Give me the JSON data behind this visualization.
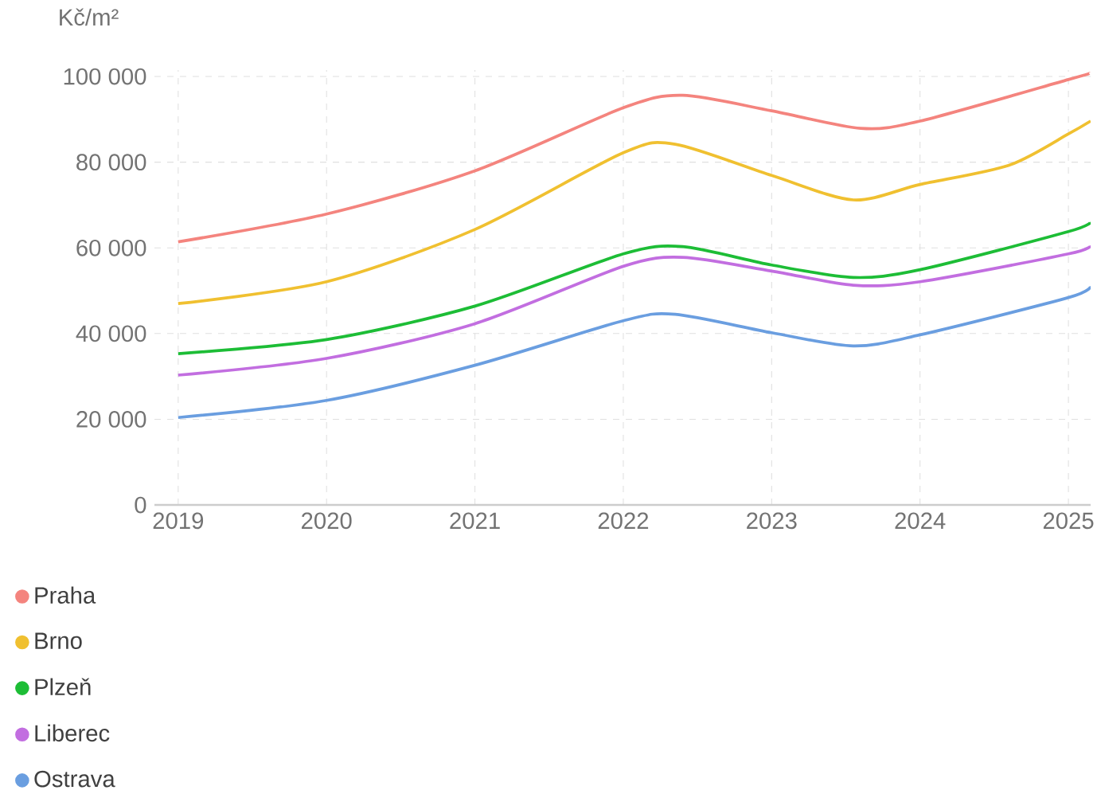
{
  "chart_data": {
    "type": "line",
    "ylabel": "Kč/m²",
    "xlim": [
      2018.84,
      2025.15
    ],
    "xticks": [
      2019,
      2020,
      2021,
      2022,
      2023,
      2024,
      2025
    ],
    "ylim": [
      0,
      101500
    ],
    "yticks": [
      {
        "value": 0,
        "label": "0"
      },
      {
        "value": 20000,
        "label": "20 000"
      },
      {
        "value": 40000,
        "label": "40 000"
      },
      {
        "value": 60000,
        "label": "60 000"
      },
      {
        "value": 80000,
        "label": "80 000"
      },
      {
        "value": 100000,
        "label": "100 000"
      }
    ],
    "grid": true,
    "legend": "bottom",
    "series": [
      {
        "name": "Praha",
        "color": "#f4847e",
        "x": [
          2019,
          2020,
          2021,
          2022,
          2022.4,
          2023,
          2023.6,
          2024,
          2025,
          2025.15
        ],
        "values": [
          61400,
          67900,
          78000,
          92700,
          95600,
          92000,
          87900,
          89600,
          99300,
          100800
        ]
      },
      {
        "name": "Brno",
        "color": "#f0c030",
        "x": [
          2019,
          2020,
          2021,
          2022,
          2022.35,
          2023,
          2023.55,
          2024,
          2024.6,
          2025,
          2025.15
        ],
        "values": [
          47000,
          52100,
          64300,
          82200,
          84200,
          76900,
          71200,
          74800,
          79300,
          86600,
          89600
        ]
      },
      {
        "name": "Plzeň",
        "color": "#1dbd36",
        "x": [
          2019,
          2020,
          2021,
          2022,
          2022.4,
          2023,
          2023.55,
          2024,
          2025,
          2025.15
        ],
        "values": [
          35300,
          38600,
          46400,
          58600,
          60300,
          56000,
          53100,
          54900,
          63800,
          66100
        ]
      },
      {
        "name": "Liberec",
        "color": "#c26ee0",
        "x": [
          2019,
          2020,
          2021,
          2022,
          2022.4,
          2023,
          2023.55,
          2024,
          2025,
          2025.15
        ],
        "values": [
          30300,
          34200,
          42300,
          55700,
          57800,
          54600,
          51300,
          52100,
          58600,
          60600
        ]
      },
      {
        "name": "Ostrava",
        "color": "#6a9ee0",
        "x": [
          2019,
          2020,
          2021,
          2022,
          2022.35,
          2023,
          2023.55,
          2024,
          2025,
          2025.15
        ],
        "values": [
          20400,
          24400,
          32600,
          43000,
          44500,
          40200,
          37100,
          39700,
          48400,
          51100
        ]
      }
    ]
  }
}
